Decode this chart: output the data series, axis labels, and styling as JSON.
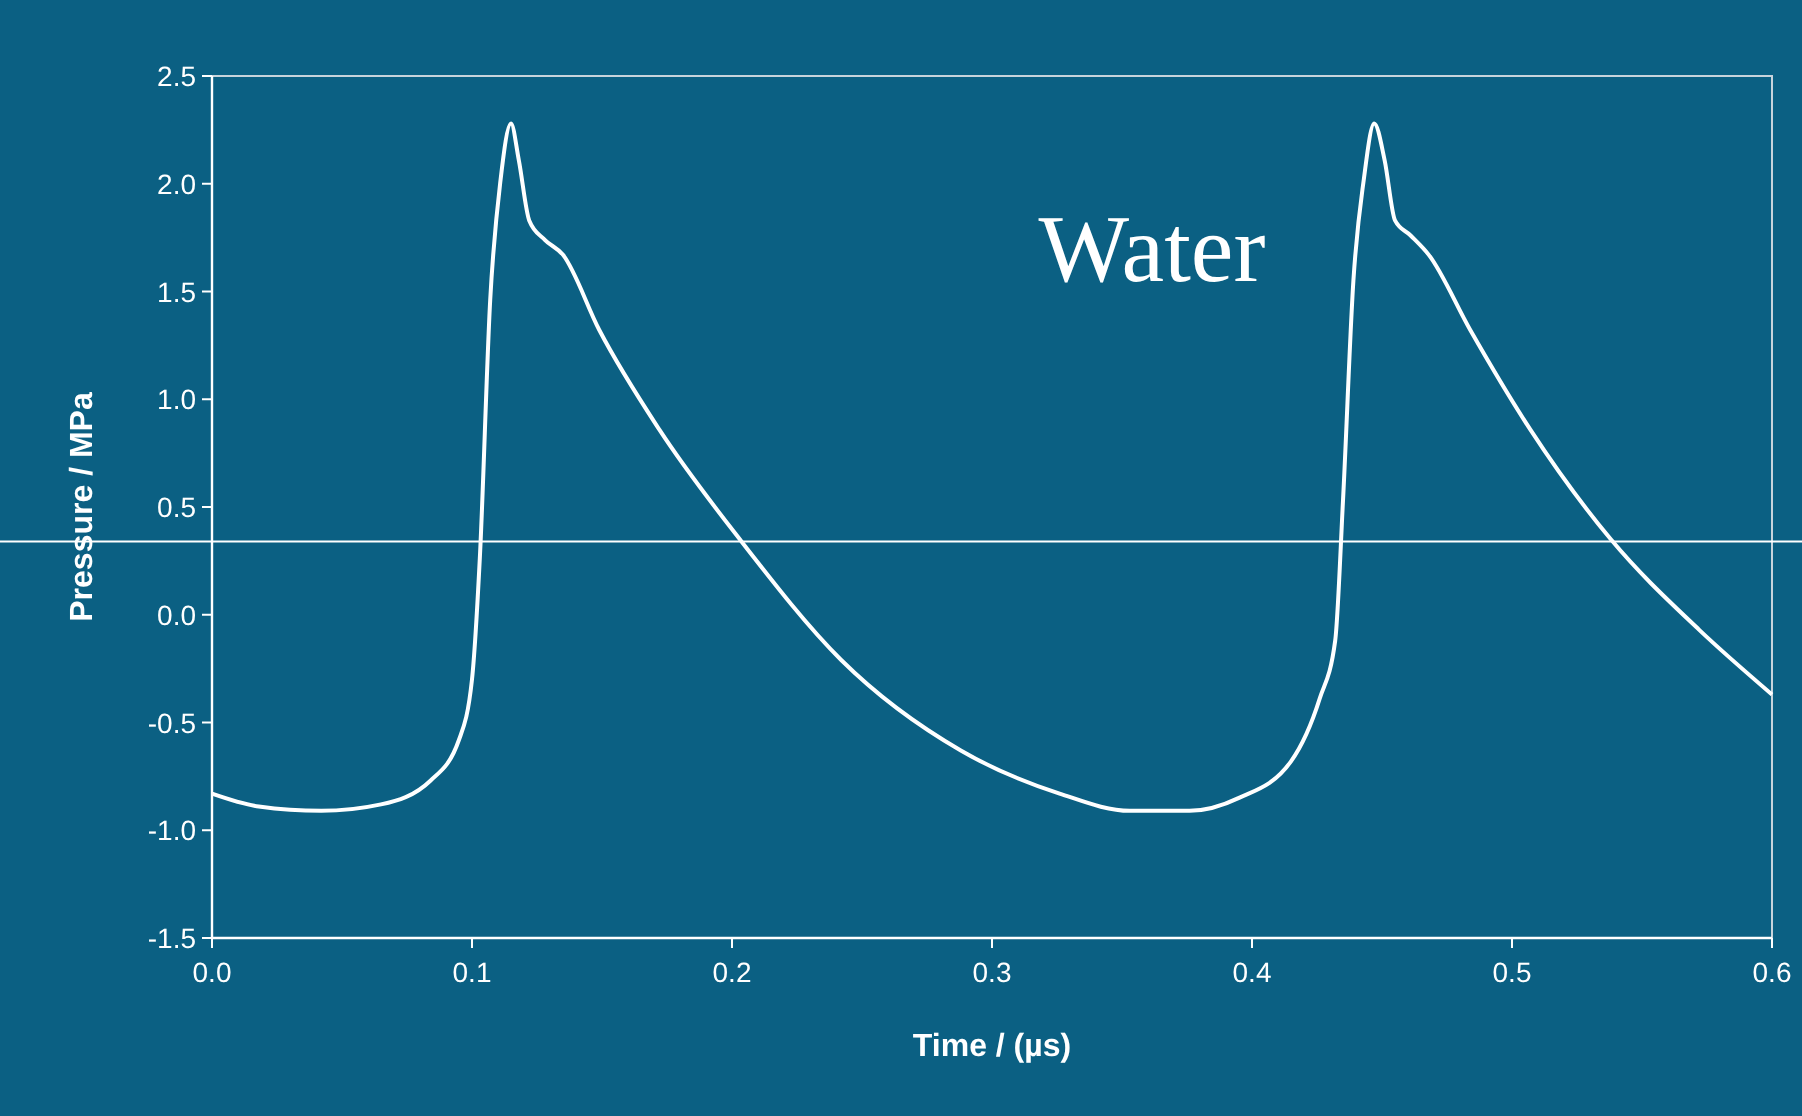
{
  "chart_data": {
    "type": "line",
    "xlabel": "Time / (µs)",
    "ylabel": "Pressure / MPa",
    "annotations": [
      "Water"
    ],
    "x": [
      0,
      0.018,
      0.042,
      0.065,
      0.084,
      0.095,
      0.1,
      0.103,
      0.107,
      0.111,
      0.115,
      0.118,
      0.122,
      0.128,
      0.135,
      0.149,
      0.172,
      0.203,
      0.242,
      0.288,
      0.326,
      0.353,
      0.376,
      0.395,
      0.415,
      0.426,
      0.432,
      0.435,
      0.439,
      0.443,
      0.447,
      0.451,
      0.455,
      0.461,
      0.468,
      0.484,
      0.507,
      0.538,
      0.572,
      0.6
    ],
    "series": [
      {
        "color": "#ffffff",
        "values": [
          -0.83,
          -0.89,
          -0.91,
          -0.88,
          -0.77,
          -0.58,
          -0.3,
          0.26,
          1.46,
          2.02,
          2.28,
          2.11,
          1.83,
          1.74,
          1.67,
          1.32,
          0.86,
          0.35,
          -0.21,
          -0.63,
          -0.83,
          -0.91,
          -0.91,
          -0.85,
          -0.68,
          -0.39,
          -0.12,
          0.53,
          1.55,
          2.02,
          2.28,
          2.11,
          1.83,
          1.76,
          1.67,
          1.32,
          0.86,
          0.35,
          -0.07,
          -0.37
        ]
      }
    ],
    "xlim": [
      0,
      0.6
    ],
    "xticks": [
      {
        "value": 0,
        "label": "0.0"
      },
      0.1,
      0.2,
      0.3,
      0.4,
      0.5,
      0.6
    ],
    "ylim": [
      -1.5,
      2.5
    ],
    "yticks": [
      -1.5,
      {
        "value": -1,
        "label": "-1.0"
      },
      -0.5,
      {
        "value": 0,
        "label": "0.0"
      },
      0.5,
      {
        "value": 1,
        "label": "1.0"
      },
      1.5,
      {
        "value": 2,
        "label": "2.0"
      },
      2.5
    ],
    "ref_lines": [
      {
        "axis": "y",
        "value": 0.34,
        "color": "#ffffff"
      }
    ],
    "grid": false,
    "marker": "none",
    "line_style": "solid"
  }
}
